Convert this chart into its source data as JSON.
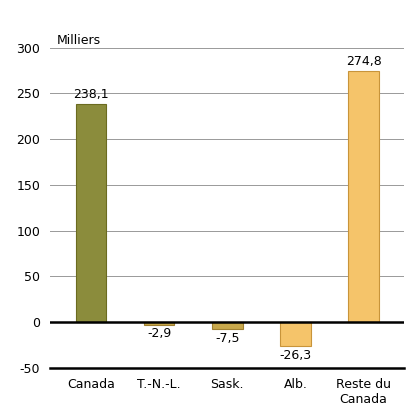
{
  "categories": [
    "Canada",
    "T.-N.-L.",
    "Sask.",
    "Alb.",
    "Reste du\nCanada"
  ],
  "values": [
    238.1,
    -2.9,
    -7.5,
    -26.3,
    274.8
  ],
  "bar_colors": [
    "#8b8c3c",
    "#c8a84b",
    "#c8a84b",
    "#f5c46a",
    "#f5c46a"
  ],
  "bar_edge_colors": [
    "#6b6b20",
    "#a08030",
    "#a08030",
    "#c8943a",
    "#c8943a"
  ],
  "labels": [
    "238,1",
    "-2,9",
    "-7,5",
    "-26,3",
    "274,8"
  ],
  "ylabel": "Milliers",
  "ylim": [
    -50,
    320
  ],
  "yticks": [
    -50,
    0,
    50,
    100,
    150,
    200,
    250,
    300
  ],
  "background_color": "#ffffff",
  "grid_color": "#999999",
  "label_fontsize": 9,
  "tick_fontsize": 9,
  "ylabel_fontsize": 9
}
